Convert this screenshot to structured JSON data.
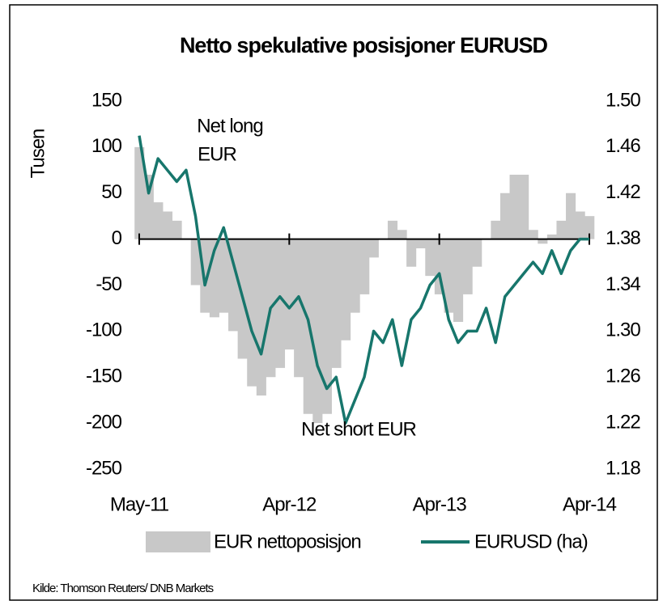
{
  "chart_data": {
    "type": "bar-line",
    "title": "Netto spekulative posisjoner EURUSD",
    "y_label": "Tusen",
    "source": "Kilde: Thomson Reuters/ DNB Markets",
    "annotations": [
      "Net long",
      "EUR",
      "Net short EUR"
    ],
    "categories": [
      "May-11",
      null,
      null,
      null,
      null,
      null,
      null,
      null,
      null,
      null,
      null,
      null,
      null,
      null,
      null,
      null,
      "Apr-12",
      null,
      null,
      null,
      null,
      null,
      null,
      null,
      null,
      null,
      null,
      null,
      null,
      null,
      null,
      null,
      "Apr-13",
      null,
      null,
      null,
      null,
      null,
      null,
      null,
      null,
      null,
      null,
      null,
      null,
      null,
      null,
      null,
      "Apr-14"
    ],
    "series": [
      {
        "name": "EUR nettoposisjon",
        "color": "#c8c8c8",
        "kind": "bar",
        "values": [
          100,
          70,
          40,
          30,
          20,
          0,
          -50,
          -80,
          -85,
          -80,
          -100,
          -130,
          -160,
          -170,
          -150,
          -140,
          -120,
          -150,
          -190,
          -200,
          -190,
          -140,
          -110,
          -80,
          -60,
          -20,
          0,
          20,
          10,
          -30,
          -10,
          -40,
          -60,
          -80,
          -90,
          -60,
          -30,
          0,
          20,
          50,
          70,
          70,
          10,
          -5,
          5,
          20,
          50,
          30,
          25
        ]
      },
      {
        "name": "EURUSD (ha)",
        "color": "#17766c",
        "kind": "line",
        "axis": "y2",
        "values": [
          1.47,
          1.42,
          1.45,
          1.44,
          1.43,
          1.44,
          1.4,
          1.34,
          1.37,
          1.39,
          1.36,
          1.33,
          1.3,
          1.28,
          1.32,
          1.33,
          1.32,
          1.33,
          1.31,
          1.27,
          1.25,
          1.26,
          1.22,
          1.24,
          1.26,
          1.3,
          1.29,
          1.31,
          1.27,
          1.31,
          1.32,
          1.34,
          1.35,
          1.31,
          1.29,
          1.3,
          1.3,
          1.32,
          1.29,
          1.33,
          1.34,
          1.35,
          1.36,
          1.35,
          1.37,
          1.35,
          1.37,
          1.38,
          1.38
        ]
      }
    ],
    "ylim": [
      -250,
      150
    ],
    "yticks": [
      -250,
      -200,
      -150,
      -100,
      -50,
      0,
      50,
      100,
      150
    ],
    "y2lim": [
      1.18,
      1.5
    ],
    "y2ticks": [
      {
        "value": 1.18,
        "label": "1.18"
      },
      {
        "value": 1.22,
        "label": "1.22"
      },
      {
        "value": 1.26,
        "label": "1.26"
      },
      {
        "value": 1.3,
        "label": "1.30"
      },
      {
        "value": 1.34,
        "label": "1.34"
      },
      {
        "value": 1.38,
        "label": "1.38"
      },
      {
        "value": 1.42,
        "label": "1.42"
      },
      {
        "value": 1.46,
        "label": "1.46"
      },
      {
        "value": 1.5,
        "label": "1.50"
      }
    ],
    "legend": "bottom"
  }
}
